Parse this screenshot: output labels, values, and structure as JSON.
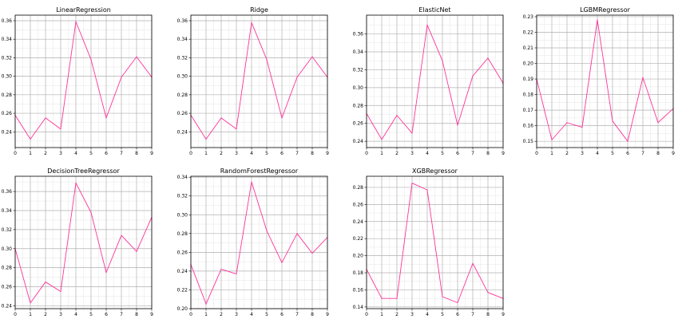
{
  "theme": {
    "line_color": "#ff3399"
  },
  "chart_data": [
    {
      "type": "line",
      "title": "LinearRegression",
      "x": [
        0,
        1,
        2,
        3,
        4,
        5,
        6,
        7,
        8,
        9
      ],
      "y": [
        0.258,
        0.232,
        0.255,
        0.243,
        0.359,
        0.318,
        0.255,
        0.299,
        0.321,
        0.299
      ],
      "xlim": [
        0,
        9
      ],
      "ylim": [
        0.223,
        0.366
      ],
      "xticks": [
        0,
        1,
        2,
        3,
        4,
        5,
        6,
        7,
        8,
        9
      ],
      "yticks": [
        0.24,
        0.26,
        0.28,
        0.3,
        0.32,
        0.34,
        0.36
      ],
      "ytick_labels": [
        "0.24",
        "0.26",
        "0.28",
        "0.30",
        "0.32",
        "0.34",
        "0.36"
      ],
      "grid": true
    },
    {
      "type": "line",
      "title": "Ridge",
      "x": [
        0,
        1,
        2,
        3,
        4,
        5,
        6,
        7,
        8,
        9
      ],
      "y": [
        0.258,
        0.232,
        0.255,
        0.243,
        0.358,
        0.318,
        0.255,
        0.299,
        0.321,
        0.299
      ],
      "xlim": [
        0,
        9
      ],
      "ylim": [
        0.223,
        0.366
      ],
      "xticks": [
        0,
        1,
        2,
        3,
        4,
        5,
        6,
        7,
        8,
        9
      ],
      "yticks": [
        0.24,
        0.26,
        0.28,
        0.3,
        0.32,
        0.34,
        0.36
      ],
      "ytick_labels": [
        "0.24",
        "0.26",
        "0.28",
        "0.30",
        "0.32",
        "0.34",
        "0.36"
      ],
      "grid": true
    },
    {
      "type": "line",
      "title": "ElasticNet",
      "x": [
        0,
        1,
        2,
        3,
        4,
        5,
        6,
        7,
        8,
        9
      ],
      "y": [
        0.271,
        0.242,
        0.269,
        0.249,
        0.37,
        0.33,
        0.258,
        0.313,
        0.333,
        0.305
      ],
      "xlim": [
        0,
        9
      ],
      "ylim": [
        0.233,
        0.381
      ],
      "xticks": [
        0,
        1,
        2,
        3,
        4,
        5,
        6,
        7,
        8,
        9
      ],
      "yticks": [
        0.24,
        0.26,
        0.28,
        0.3,
        0.32,
        0.34,
        0.36
      ],
      "ytick_labels": [
        "0.24",
        "0.26",
        "0.28",
        "0.30",
        "0.32",
        "0.34",
        "0.36"
      ],
      "grid": true
    },
    {
      "type": "line",
      "title": "LGBMRegressor",
      "x": [
        0,
        1,
        2,
        3,
        4,
        5,
        6,
        7,
        8,
        9
      ],
      "y": [
        0.19,
        0.151,
        0.162,
        0.159,
        0.228,
        0.163,
        0.15,
        0.191,
        0.162,
        0.171
      ],
      "xlim": [
        0,
        9
      ],
      "ylim": [
        0.146,
        0.231
      ],
      "xticks": [
        0,
        1,
        2,
        3,
        4,
        5,
        6,
        7,
        8,
        9
      ],
      "yticks": [
        0.15,
        0.16,
        0.17,
        0.18,
        0.19,
        0.2,
        0.21,
        0.22,
        0.23
      ],
      "ytick_labels": [
        "0.15",
        "0.16",
        "0.17",
        "0.18",
        "0.19",
        "0.20",
        "0.21",
        "0.22",
        "0.23"
      ],
      "grid": true
    },
    {
      "type": "line",
      "title": "DecisionTreeRegressor",
      "x": [
        0,
        1,
        2,
        3,
        4,
        5,
        6,
        7,
        8,
        9
      ],
      "y": [
        0.3,
        0.243,
        0.265,
        0.255,
        0.369,
        0.338,
        0.275,
        0.314,
        0.297,
        0.333
      ],
      "xlim": [
        0,
        9
      ],
      "ylim": [
        0.237,
        0.376
      ],
      "xticks": [
        0,
        1,
        2,
        3,
        4,
        5,
        6,
        7,
        8,
        9
      ],
      "yticks": [
        0.24,
        0.26,
        0.28,
        0.3,
        0.32,
        0.34,
        0.36
      ],
      "ytick_labels": [
        "0.24",
        "0.26",
        "0.28",
        "0.30",
        "0.32",
        "0.34",
        "0.36"
      ],
      "grid": true
    },
    {
      "type": "line",
      "title": "RandomForestRegressor",
      "x": [
        0,
        1,
        2,
        3,
        4,
        5,
        6,
        7,
        8,
        9
      ],
      "y": [
        0.247,
        0.205,
        0.242,
        0.237,
        0.335,
        0.283,
        0.249,
        0.28,
        0.259,
        0.276
      ],
      "xlim": [
        0,
        9
      ],
      "ylim": [
        0.2,
        0.341
      ],
      "xticks": [
        0,
        1,
        2,
        3,
        4,
        5,
        6,
        7,
        8,
        9
      ],
      "yticks": [
        0.2,
        0.22,
        0.24,
        0.26,
        0.28,
        0.3,
        0.32,
        0.34
      ],
      "ytick_labels": [
        "0.20",
        "0.22",
        "0.24",
        "0.26",
        "0.28",
        "0.30",
        "0.32",
        "0.34"
      ],
      "grid": true
    },
    {
      "type": "line",
      "title": "XGBRegressor",
      "x": [
        0,
        1,
        2,
        3,
        4,
        5,
        6,
        7,
        8,
        9
      ],
      "y": [
        0.184,
        0.15,
        0.15,
        0.285,
        0.277,
        0.152,
        0.145,
        0.191,
        0.157,
        0.15
      ],
      "xlim": [
        0,
        9
      ],
      "ylim": [
        0.138,
        0.293
      ],
      "xticks": [
        0,
        1,
        2,
        3,
        4,
        5,
        6,
        7,
        8,
        9
      ],
      "yticks": [
        0.14,
        0.16,
        0.18,
        0.2,
        0.22,
        0.24,
        0.26,
        0.28
      ],
      "ytick_labels": [
        "0.14",
        "0.16",
        "0.18",
        "0.20",
        "0.22",
        "0.24",
        "0.26",
        "0.28"
      ],
      "grid": true
    }
  ]
}
